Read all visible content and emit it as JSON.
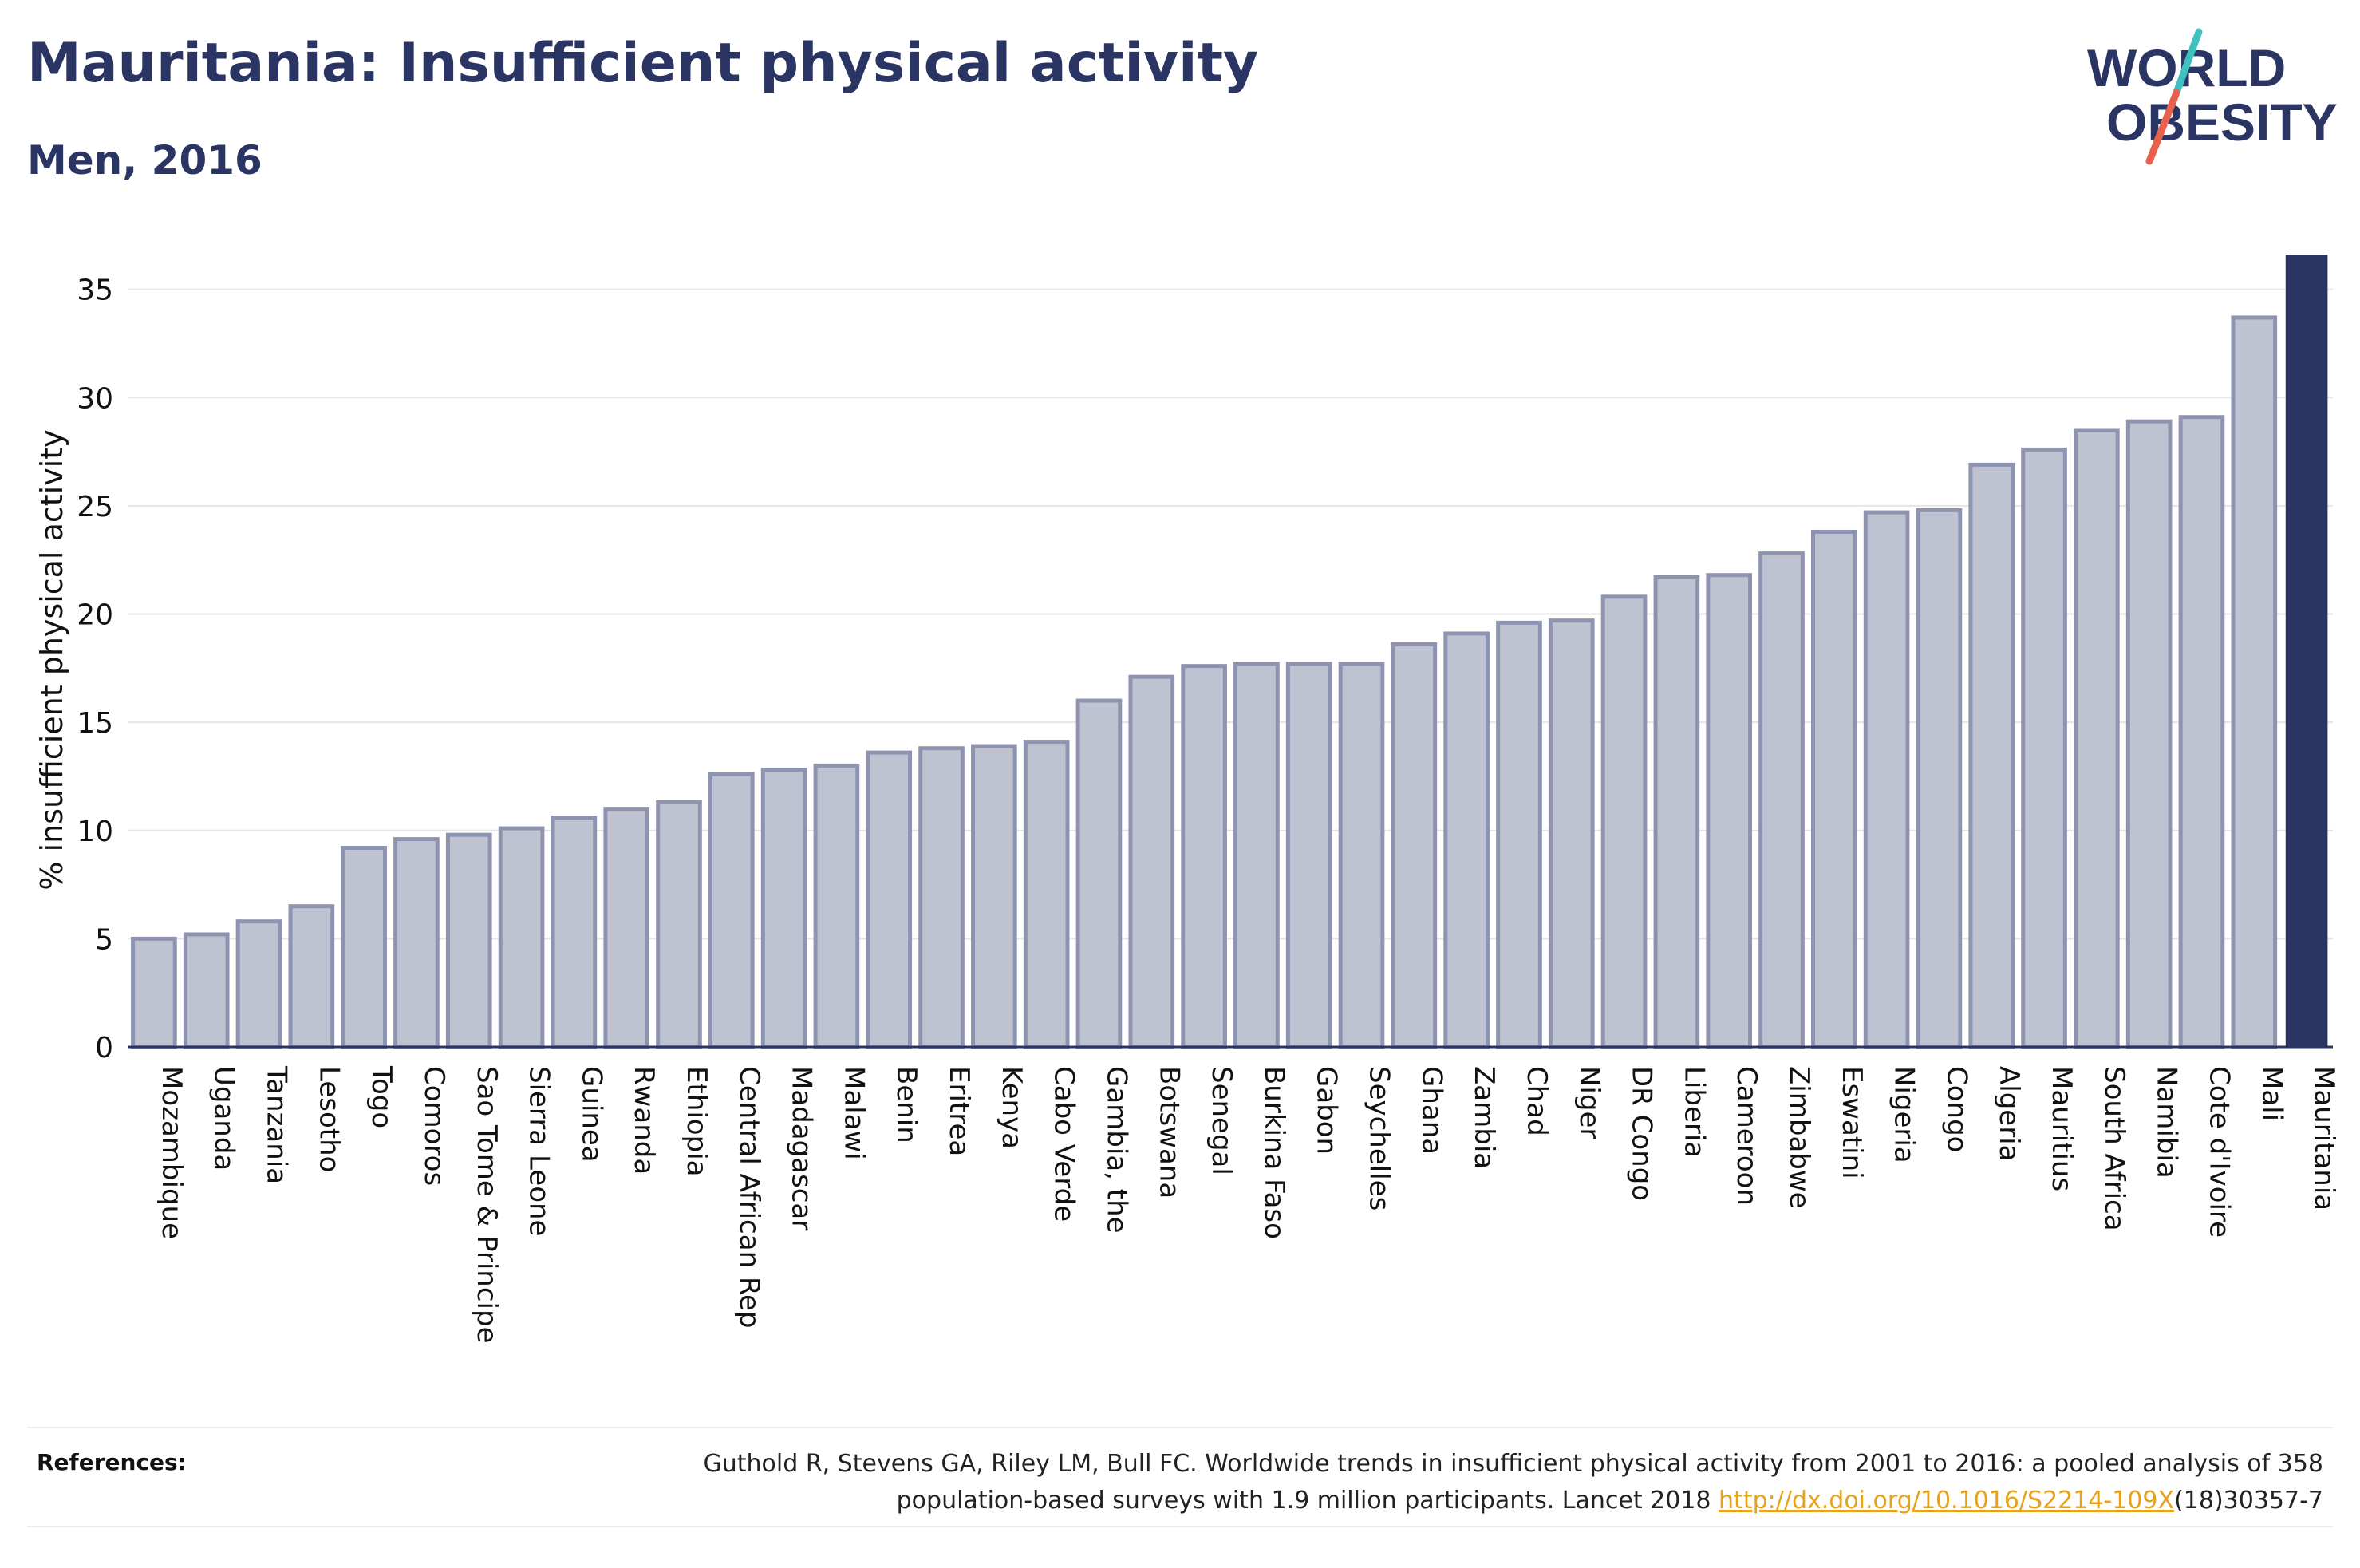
{
  "title": "Mauritania: Insufficient physical activity",
  "subtitle": "Men, 2016",
  "logo": {
    "line1": "WORLD",
    "line2": "OBESITY",
    "accent_teal": "#3fc1c0",
    "accent_red": "#e8614d"
  },
  "colors": {
    "navy": "#2b3563",
    "bar_fill": "#bfc3d1",
    "bar_stroke": "#8e94b0",
    "highlight": "#2b3563"
  },
  "references": {
    "label": "References:",
    "line1": "Guthold R, Stevens GA, Riley LM, Bull FC. Worldwide trends in insufficient physical activity from 2001 to 2016: a pooled analysis of 358",
    "line2_prefix": "population-based surveys with 1.9 million participants. Lancet 2018 ",
    "link_text": "http://dx.doi.org/10.1016/S2214-109X",
    "line2_suffix": "(18)30357-7"
  },
  "chart_data": {
    "type": "bar",
    "ylabel": "% insufficient physical activity",
    "xlabel": "",
    "ylim": [
      0,
      36.5
    ],
    "yticks": [
      0,
      5,
      10,
      15,
      20,
      25,
      30,
      35
    ],
    "grid": true,
    "highlight": "Mauritania",
    "categories": [
      "Mozambique",
      "Uganda",
      "Tanzania",
      "Lesotho",
      "Togo",
      "Comoros",
      "Sao Tome & Principe",
      "Sierra Leone",
      "Guinea",
      "Rwanda",
      "Ethiopia",
      "Central African Rep",
      "Madagascar",
      "Malawi",
      "Benin",
      "Eritrea",
      "Kenya",
      "Cabo Verde",
      "Gambia, the",
      "Botswana",
      "Senegal",
      "Burkina Faso",
      "Gabon",
      "Seychelles",
      "Ghana",
      "Zambia",
      "Chad",
      "Niger",
      "DR Congo",
      "Liberia",
      "Cameroon",
      "Zimbabwe",
      "Eswatini",
      "Nigeria",
      "Congo",
      "Algeria",
      "Mauritius",
      "South Africa",
      "Namibia",
      "Cote d'Ivoire",
      "Mali",
      "Mauritania"
    ],
    "values": [
      5.0,
      5.2,
      5.8,
      6.5,
      9.2,
      9.6,
      9.8,
      10.1,
      10.6,
      11.0,
      11.3,
      12.6,
      12.8,
      13.0,
      13.6,
      13.8,
      13.9,
      14.1,
      16.0,
      17.1,
      17.6,
      17.7,
      17.7,
      17.7,
      18.6,
      19.1,
      19.6,
      19.7,
      20.8,
      21.7,
      21.8,
      22.8,
      23.8,
      24.7,
      24.8,
      26.9,
      27.6,
      28.5,
      28.9,
      29.1,
      33.7,
      36.6
    ]
  }
}
